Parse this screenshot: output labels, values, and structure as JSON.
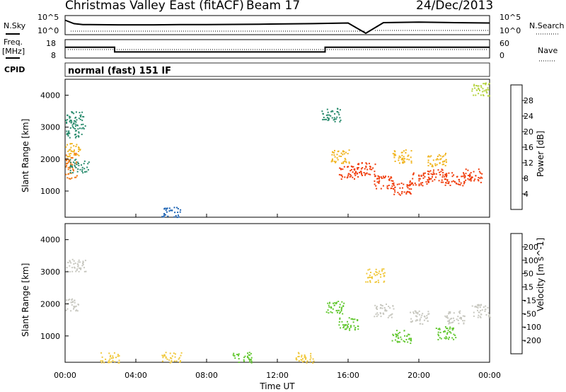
{
  "header": {
    "station_title": "Christmas Valley East (fitACF)",
    "beam_label": "Beam 17",
    "date_label": "24/Dec/2013"
  },
  "left_labels": {
    "nsky": "N.Sky",
    "freq": "Freq.",
    "mhz": "[MHz]",
    "cpid": "CPID",
    "noise_tick_top": "10^5",
    "noise_tick_bottom": "10^0",
    "freq_tick_top": "18",
    "freq_tick_bottom": "8"
  },
  "right_labels": {
    "nsearch": "N.Search",
    "nave": "Nave",
    "noise_tick_top": "10^5",
    "noise_tick_bottom": "10^0",
    "nave_tick_top": "60",
    "nave_tick_bottom": "0"
  },
  "cpid_text": "normal (fast) 151 IF",
  "x_axis": {
    "title": "Time UT",
    "ticks": [
      "00:00",
      "04:00",
      "08:00",
      "12:00",
      "16:00",
      "20:00",
      "00:00"
    ]
  },
  "y_axis": {
    "title": "Slant Range [km]",
    "ticks": [
      "1000",
      "2000",
      "3000",
      "4000"
    ]
  },
  "colors": {
    "power": [
      "#1e1edc",
      "#1e64b4",
      "#2a8c6e",
      "#3cb43c",
      "#b4d23c",
      "#f0b41e",
      "#f07814",
      "#f03c0a",
      "#ff0000"
    ],
    "velocity": [
      "#1e1edc",
      "#1e5ab4",
      "#2a8c50",
      "#64c832",
      "#c8c8c0",
      "#f0c83c",
      "#f09628",
      "#f06414",
      "#ff0000"
    ]
  },
  "power_scale": {
    "label": "Power [dB]",
    "ticks": [
      "4",
      "8",
      "12",
      "16",
      "20",
      "24",
      "28"
    ]
  },
  "velocity_scale": {
    "label": "Velocity [m s^-1]",
    "ticks": [
      "200",
      "100",
      "50",
      "15",
      "-15",
      "-50",
      "-100",
      "-200"
    ]
  },
  "chart_data": [
    {
      "type": "line",
      "name": "noise",
      "x": [
        0,
        0.5,
        1,
        3,
        5,
        7,
        8,
        11,
        14,
        16,
        17,
        18,
        20,
        22,
        24
      ],
      "y": [
        4.2,
        3.1,
        2.8,
        2.7,
        2.7,
        2.8,
        2.8,
        2.9,
        3.1,
        3.3,
        0.0,
        3.4,
        3.6,
        3.4,
        3.3
      ],
      "xlabel": "",
      "ylabel": ""
    },
    {
      "type": "line",
      "name": "frequency",
      "x": [
        0,
        2.8,
        2.8,
        14.7,
        14.7,
        24
      ],
      "y": [
        14,
        14,
        11,
        11,
        14,
        14
      ],
      "ylim": [
        8,
        18
      ],
      "xlabel": "",
      "ylabel": ""
    },
    {
      "type": "heatmap",
      "name": "power",
      "xlabel": "Time UT",
      "ylabel": "Slant Range [km]",
      "xlim": [
        0,
        24
      ],
      "ylim": [
        180,
        4500
      ],
      "zlim": [
        0,
        30
      ],
      "points": [
        {
          "t": 0.1,
          "r": 2000,
          "z": 22
        },
        {
          "t": 0.2,
          "r": 1600,
          "z": 24
        },
        {
          "t": 0.3,
          "r": 2300,
          "z": 20
        },
        {
          "t": 0.5,
          "r": 3300,
          "z": 6
        },
        {
          "t": 0.6,
          "r": 2900,
          "z": 6
        },
        {
          "t": 0.8,
          "r": 1800,
          "z": 6
        },
        {
          "t": 15.0,
          "r": 3400,
          "z": 8
        },
        {
          "t": 15.5,
          "r": 2100,
          "z": 20
        },
        {
          "t": 16.0,
          "r": 1600,
          "z": 26
        },
        {
          "t": 17.0,
          "r": 1700,
          "z": 26
        },
        {
          "t": 18.0,
          "r": 1300,
          "z": 28
        },
        {
          "t": 19.0,
          "r": 1100,
          "z": 28
        },
        {
          "t": 20.0,
          "r": 1400,
          "z": 27
        },
        {
          "t": 21.0,
          "r": 1500,
          "z": 27
        },
        {
          "t": 22.0,
          "r": 1400,
          "z": 27
        },
        {
          "t": 23.0,
          "r": 1500,
          "z": 26
        },
        {
          "t": 19.0,
          "r": 2100,
          "z": 18
        },
        {
          "t": 21.0,
          "r": 2000,
          "z": 18
        },
        {
          "t": 23.5,
          "r": 4200,
          "z": 14
        },
        {
          "t": 6.0,
          "r": 300,
          "z": 4
        }
      ]
    },
    {
      "type": "heatmap",
      "name": "velocity",
      "xlabel": "Time UT",
      "ylabel": "Slant Range [km]",
      "xlim": [
        0,
        24
      ],
      "ylim": [
        180,
        4500
      ],
      "zlim": [
        -200,
        200
      ],
      "points": [
        {
          "t": 0.2,
          "r": 2000,
          "z": 0
        },
        {
          "t": 0.6,
          "r": 3200,
          "z": 0
        },
        {
          "t": 2.5,
          "r": 300,
          "z": -60
        },
        {
          "t": 6.0,
          "r": 300,
          "z": -60
        },
        {
          "t": 10.0,
          "r": 300,
          "z": 30
        },
        {
          "t": 13.5,
          "r": 300,
          "z": -60
        },
        {
          "t": 15.2,
          "r": 1900,
          "z": 40
        },
        {
          "t": 16.0,
          "r": 1400,
          "z": 40
        },
        {
          "t": 18.0,
          "r": 1800,
          "z": 0
        },
        {
          "t": 20.0,
          "r": 1600,
          "z": 0
        },
        {
          "t": 22.0,
          "r": 1600,
          "z": 0
        },
        {
          "t": 23.5,
          "r": 1800,
          "z": 0
        },
        {
          "t": 19.0,
          "r": 1000,
          "z": 40
        },
        {
          "t": 21.5,
          "r": 1100,
          "z": 40
        },
        {
          "t": 17.5,
          "r": 2900,
          "z": -60
        }
      ]
    }
  ]
}
